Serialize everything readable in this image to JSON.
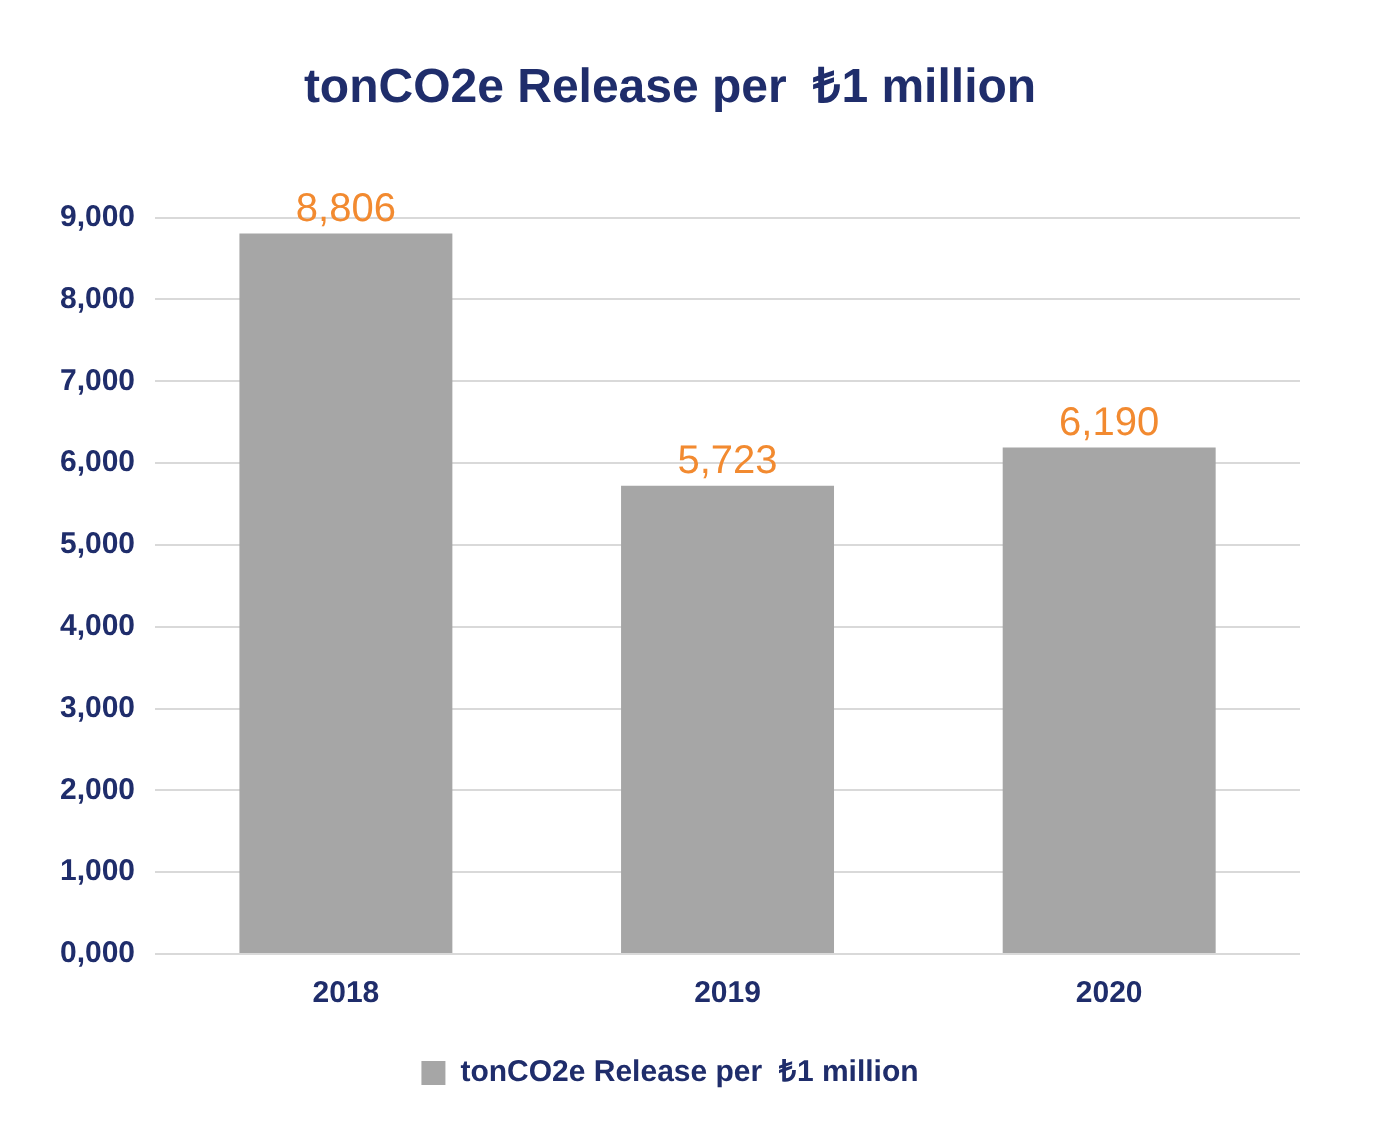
{
  "chart_data": {
    "type": "bar",
    "title": "tonCO2e Release per  ₺1 million",
    "categories": [
      "2018",
      "2019",
      "2020"
    ],
    "series": [
      {
        "name": "tonCO2e Release per  ₺1 million",
        "color": "#a6a6a6",
        "values": [
          8806,
          5723,
          6190
        ],
        "value_labels": [
          "8,806",
          "5,723",
          "6,190"
        ]
      }
    ],
    "ylim": [
      0,
      9000
    ],
    "yticks": [
      {
        "value": 0,
        "label": "0,000"
      },
      {
        "value": 1000,
        "label": "1,000"
      },
      {
        "value": 2000,
        "label": "2,000"
      },
      {
        "value": 3000,
        "label": "3,000"
      },
      {
        "value": 4000,
        "label": "4,000"
      },
      {
        "value": 5000,
        "label": "5,000"
      },
      {
        "value": 6000,
        "label": "6,000"
      },
      {
        "value": 7000,
        "label": "7,000"
      },
      {
        "value": 8000,
        "label": "8,000"
      },
      {
        "value": 9000,
        "label": "9,000"
      }
    ],
    "grid": "y",
    "legend": "bottom"
  }
}
